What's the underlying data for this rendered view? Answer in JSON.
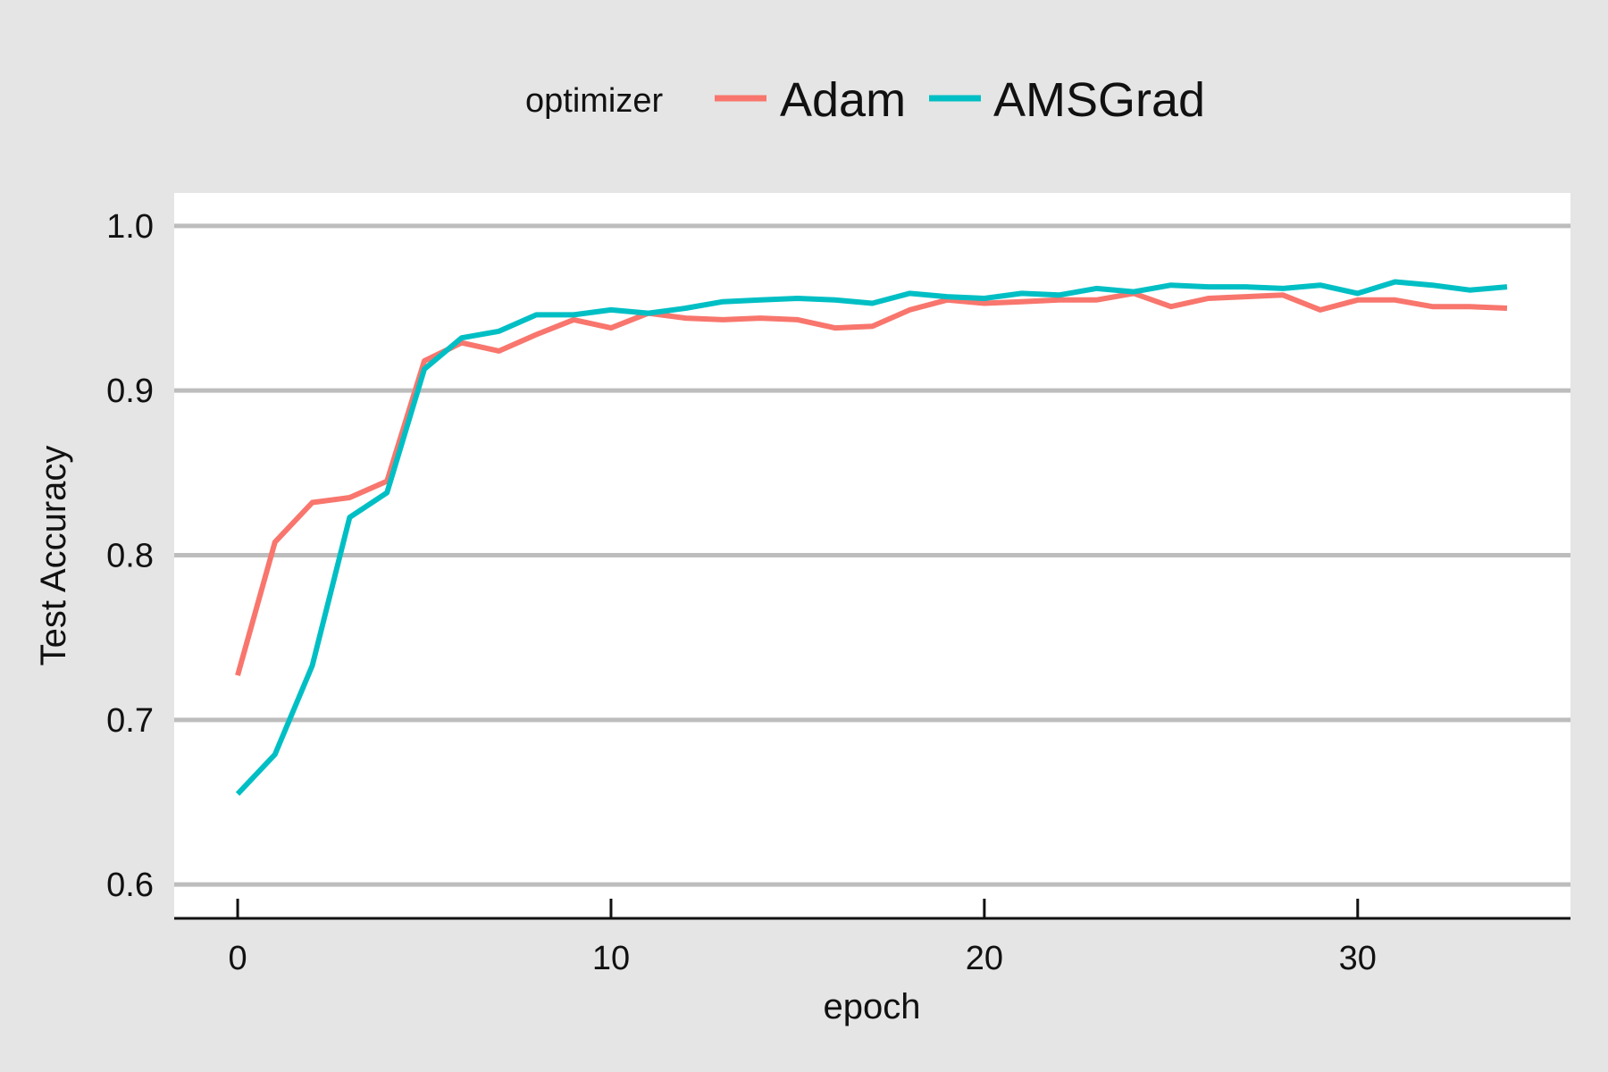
{
  "chart_data": {
    "type": "line",
    "title": "",
    "xlabel": "epoch",
    "ylabel": "Test Accuracy",
    "xlim": [
      -1.7,
      35.7
    ],
    "ylim": [
      0.58,
      1.02
    ],
    "xticks": [
      0,
      10,
      20,
      30
    ],
    "yticks": [
      0.6,
      0.7,
      0.8,
      0.9,
      1.0
    ],
    "ytick_labels": [
      "0.6",
      "0.7",
      "0.8",
      "0.9",
      "1.0"
    ],
    "grid": "horizontal",
    "legend": {
      "title": "optimizer",
      "position": "top"
    },
    "series": [
      {
        "name": "Adam",
        "color": "#F8766D",
        "x": [
          0,
          1,
          2,
          3,
          4,
          5,
          6,
          7,
          8,
          9,
          10,
          11,
          12,
          13,
          14,
          15,
          16,
          17,
          18,
          19,
          20,
          21,
          22,
          23,
          24,
          25,
          26,
          27,
          28,
          29,
          30,
          31,
          32,
          33,
          34
        ],
        "y": [
          0.727,
          0.808,
          0.832,
          0.835,
          0.845,
          0.918,
          0.929,
          0.924,
          0.934,
          0.943,
          0.938,
          0.947,
          0.944,
          0.943,
          0.944,
          0.943,
          0.938,
          0.939,
          0.949,
          0.955,
          0.953,
          0.954,
          0.955,
          0.955,
          0.959,
          0.951,
          0.956,
          0.957,
          0.958,
          0.949,
          0.955,
          0.955,
          0.951,
          0.951,
          0.95
        ]
      },
      {
        "name": "AMSGrad",
        "color": "#00BFC4",
        "x": [
          0,
          1,
          2,
          3,
          4,
          5,
          6,
          7,
          8,
          9,
          10,
          11,
          12,
          13,
          14,
          15,
          16,
          17,
          18,
          19,
          20,
          21,
          22,
          23,
          24,
          25,
          26,
          27,
          28,
          29,
          30,
          31,
          32,
          33,
          34
        ],
        "y": [
          0.655,
          0.679,
          0.733,
          0.823,
          0.838,
          0.913,
          0.932,
          0.936,
          0.946,
          0.946,
          0.949,
          0.947,
          0.95,
          0.954,
          0.955,
          0.956,
          0.955,
          0.953,
          0.959,
          0.957,
          0.956,
          0.959,
          0.958,
          0.962,
          0.96,
          0.964,
          0.963,
          0.963,
          0.962,
          0.964,
          0.959,
          0.966,
          0.964,
          0.961,
          0.963
        ]
      }
    ]
  }
}
